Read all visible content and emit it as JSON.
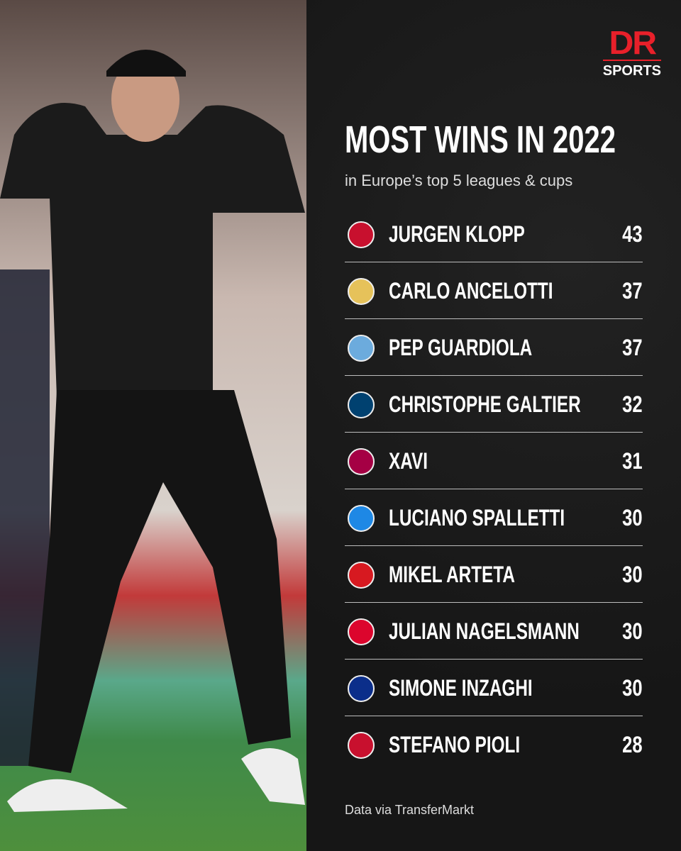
{
  "brand": {
    "logo": "DR",
    "sub": "SPORTS"
  },
  "title": "MOST WINS IN 2022",
  "subtitle": "in Europe’s top 5 leagues & cups",
  "rows": [
    {
      "name": "JURGEN KLOPP",
      "wins": "43"
    },
    {
      "name": "CARLO ANCELOTTI",
      "wins": "37"
    },
    {
      "name": "PEP GUARDIOLA",
      "wins": "37"
    },
    {
      "name": "CHRISTOPHE GALTIER",
      "wins": "32"
    },
    {
      "name": "XAVI",
      "wins": "31"
    },
    {
      "name": "LUCIANO SPALLETTI",
      "wins": "30"
    },
    {
      "name": "MIKEL ARTETA",
      "wins": "30"
    },
    {
      "name": "JULIAN NAGELSMANN",
      "wins": "30"
    },
    {
      "name": "SIMONE INZAGHI",
      "wins": "30"
    },
    {
      "name": "STEFANO PIOLI",
      "wins": "28"
    }
  ],
  "footer": "Data via TransferMarkt"
}
